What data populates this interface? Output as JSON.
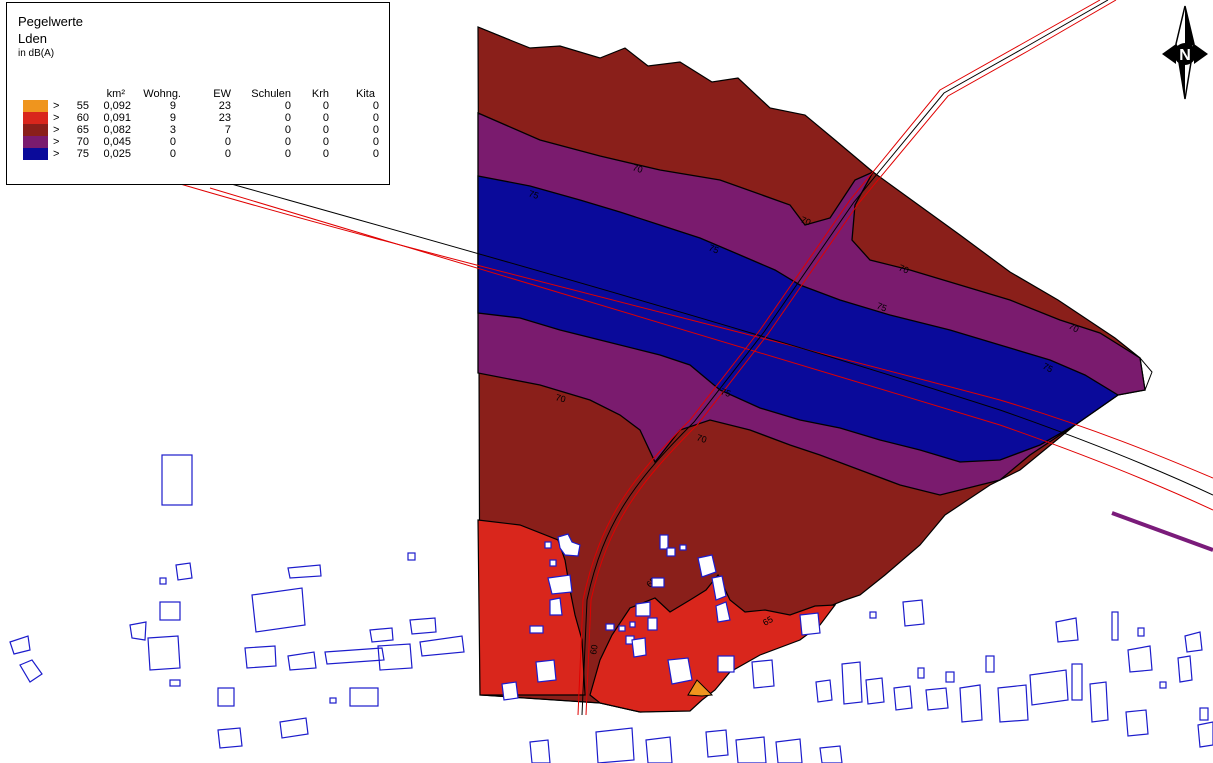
{
  "legend": {
    "title": "Pegelwerte",
    "indicator": "Lden",
    "unit": "in dB(A)",
    "columns": [
      "km²",
      "Wohng.",
      "EW",
      "Schulen",
      "Krh",
      "Kita"
    ],
    "rows": [
      {
        "op": ">",
        "level": "55",
        "color": "#ef951e",
        "km2": "0,092",
        "wohng": "9",
        "ew": "23",
        "schulen": "0",
        "krh": "0",
        "kita": "0"
      },
      {
        "op": ">",
        "level": "60",
        "color": "#d9261c",
        "km2": "0,091",
        "wohng": "9",
        "ew": "23",
        "schulen": "0",
        "krh": "0",
        "kita": "0"
      },
      {
        "op": ">",
        "level": "65",
        "color": "#8a1f1a",
        "km2": "0,082",
        "wohng": "3",
        "ew": "7",
        "schulen": "0",
        "krh": "0",
        "kita": "0"
      },
      {
        "op": ">",
        "level": "70",
        "color": "#7a1b6e",
        "km2": "0,045",
        "wohng": "0",
        "ew": "0",
        "schulen": "0",
        "krh": "0",
        "kita": "0"
      },
      {
        "op": ">",
        "level": "75",
        "color": "#0a0a9a",
        "km2": "0,025",
        "wohng": "0",
        "ew": "0",
        "schulen": "0",
        "krh": "0",
        "kita": "0"
      }
    ]
  },
  "north_arrow": {
    "letter": "N",
    "icon": "north-arrow-icon"
  },
  "contour_labels": [
    "70",
    "75",
    "70",
    "75",
    "70",
    "75",
    "70",
    "75",
    "70",
    "75",
    "70",
    "65",
    "65",
    "60"
  ],
  "colors": {
    "building": "#1c1ccc",
    "road_edge": "#e00000",
    "road_center": "#000000",
    "rail": "#7a1b7a"
  }
}
